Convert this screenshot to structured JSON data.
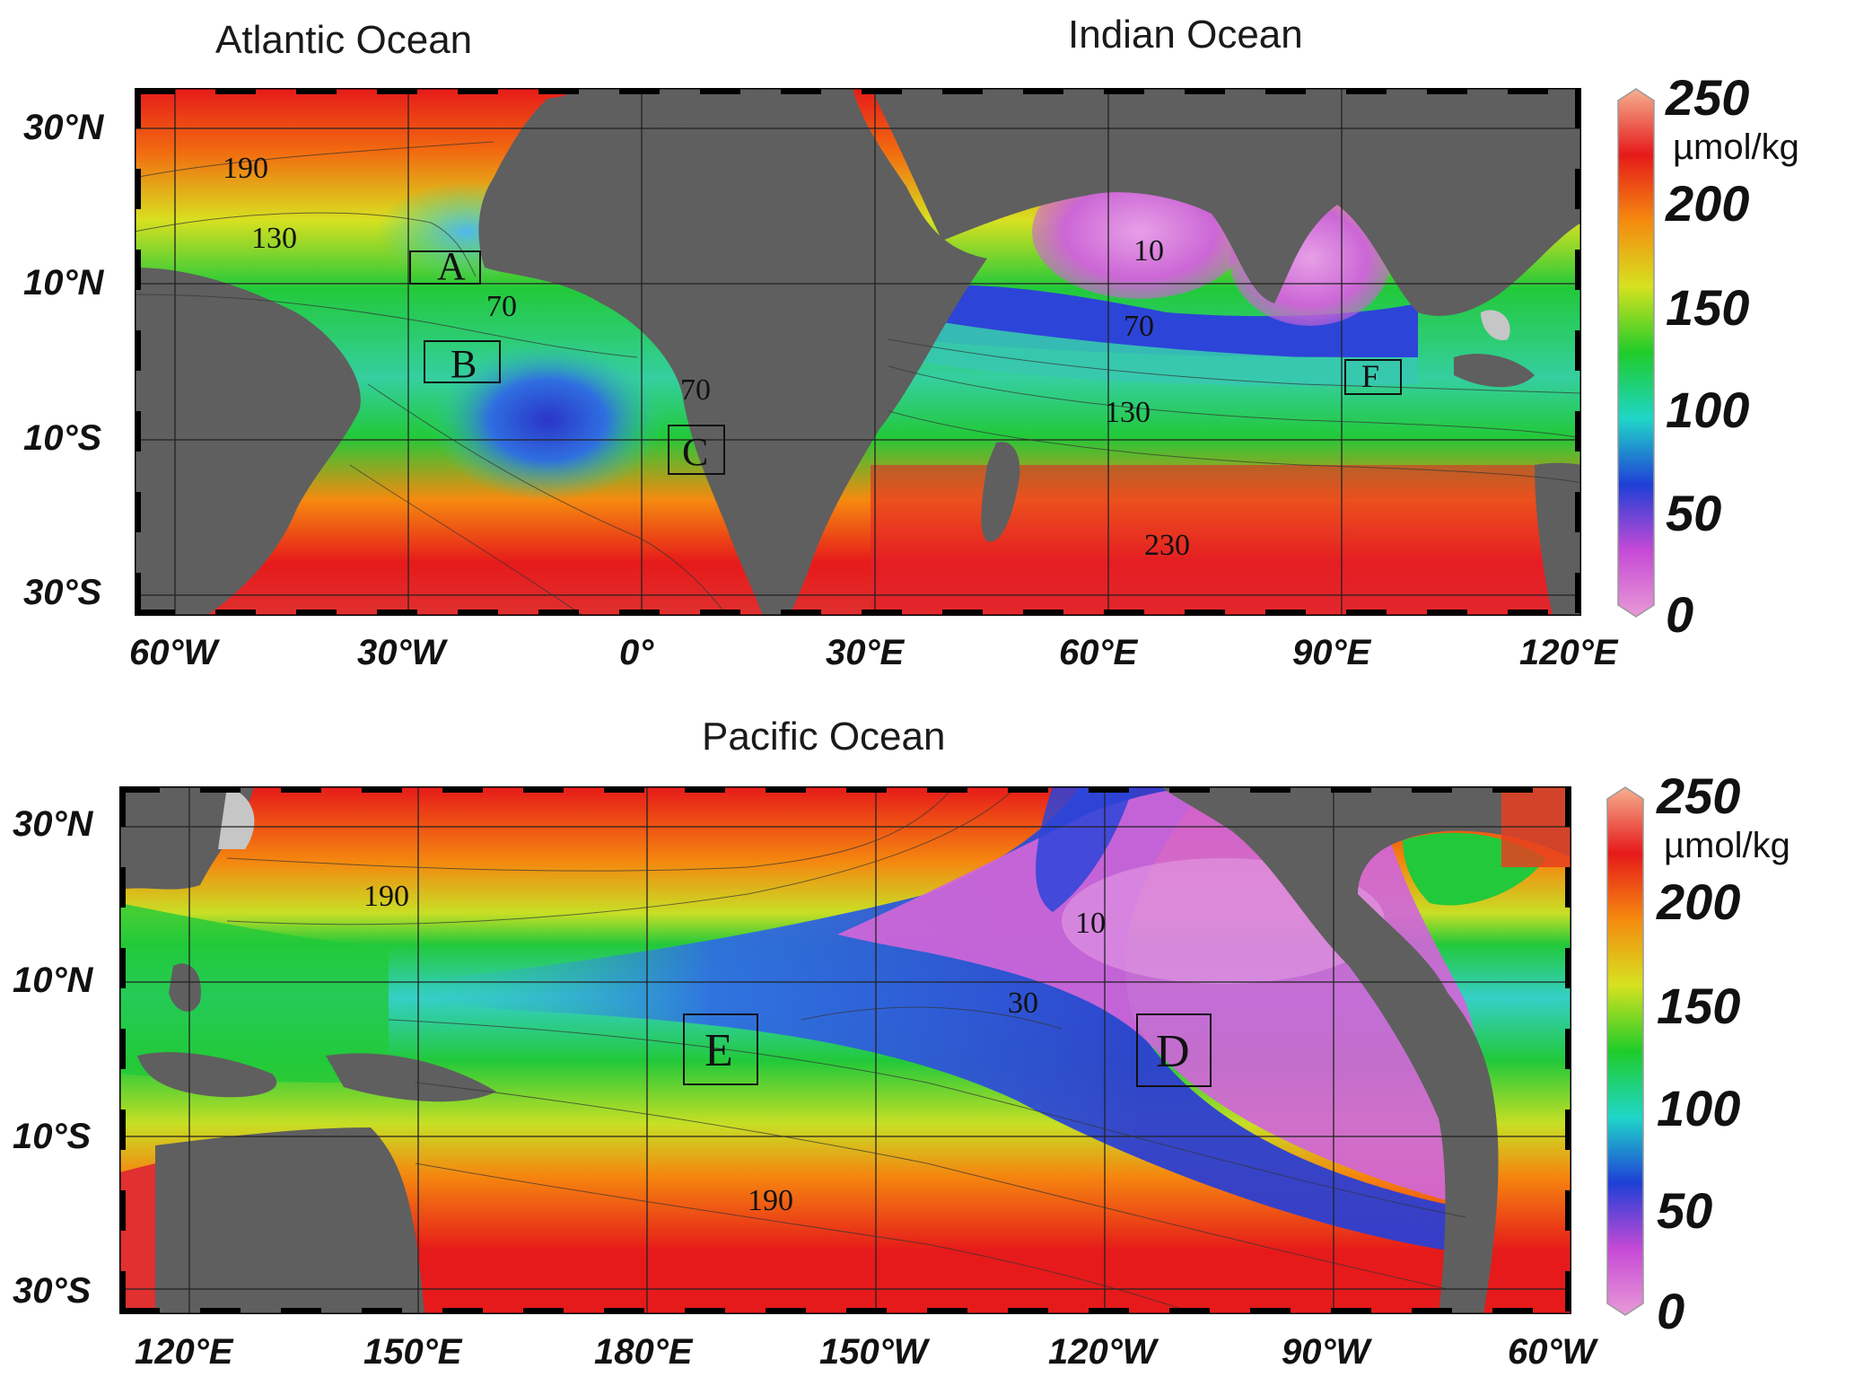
{
  "titles": {
    "atlantic": "Atlantic Ocean",
    "indian": "Indian Ocean",
    "pacific": "Pacific Ocean"
  },
  "top_map": {
    "lat_ticks": [
      "30°N",
      "10°N",
      "10°S",
      "30°S"
    ],
    "lon_ticks": [
      "60°W",
      "30°W",
      "0°",
      "30°E",
      "60°E",
      "90°E",
      "120°E"
    ],
    "contour_labels": [
      "190",
      "130",
      "70",
      "70",
      "10",
      "70",
      "130",
      "230"
    ],
    "region_boxes": [
      "A",
      "B",
      "C",
      "F"
    ]
  },
  "bottom_map": {
    "lat_ticks": [
      "30°N",
      "10°N",
      "10°S",
      "30°S"
    ],
    "lon_ticks": [
      "120°E",
      "150°E",
      "180°E",
      "150°W",
      "120°W",
      "90°W",
      "60°W"
    ],
    "contour_labels": [
      "190",
      "10",
      "30",
      "190"
    ],
    "region_boxes": [
      "E",
      "D"
    ]
  },
  "colorbar": {
    "ticks": [
      "250",
      "200",
      "150",
      "100",
      "50",
      "0"
    ],
    "unit": "µmol/kg",
    "range": [
      0,
      250
    ],
    "colors": [
      "#e89ad6",
      "#c64ad6",
      "#1f3fd6",
      "#1fd6c8",
      "#1fcc2a",
      "#d6e21f",
      "#f58a0f",
      "#e61a1a",
      "#f5b090"
    ]
  },
  "colors": {
    "land": "#5f5f5f",
    "shelf": "#c6c6c6",
    "frame": "#000000"
  }
}
